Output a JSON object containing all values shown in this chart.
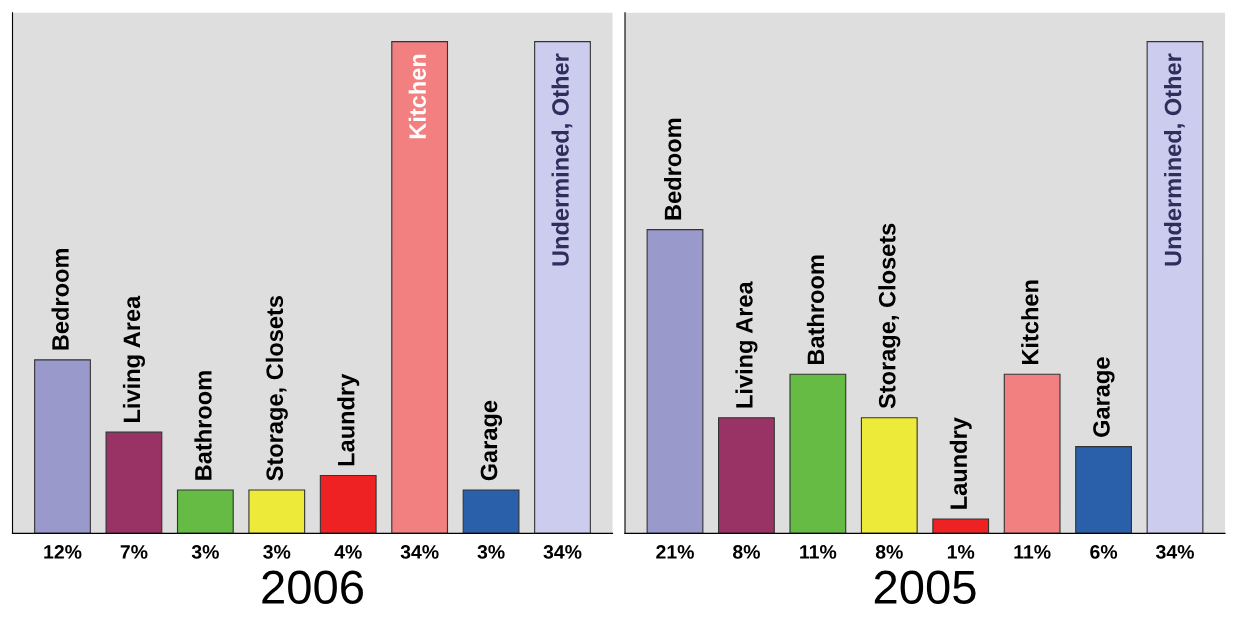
{
  "chart_data": [
    {
      "type": "bar",
      "title": "2006",
      "categories": [
        "Bedroom",
        "Living Area",
        "Bathroom",
        "Storage, Closets",
        "Laundry",
        "Kitchen",
        "Garage",
        "Undermined, Other"
      ],
      "values": [
        12,
        7,
        3,
        3,
        4,
        34,
        3,
        34
      ],
      "value_labels": [
        "12%",
        "7%",
        "3%",
        "3%",
        "4%",
        "34%",
        "3%",
        "34%"
      ],
      "colors": [
        "#9999cc",
        "#993366",
        "#66bb44",
        "#eeea3a",
        "#ee2222",
        "#f28080",
        "#2a5faa",
        "#ccccee"
      ],
      "ylim": [
        0,
        36
      ]
    },
    {
      "type": "bar",
      "title": "2005",
      "categories": [
        "Bedroom",
        "Living Area",
        "Bathroom",
        "Storage, Closets",
        "Laundry",
        "Kitchen",
        "Garage",
        "Undermined, Other"
      ],
      "values": [
        21,
        8,
        11,
        8,
        1,
        11,
        6,
        34
      ],
      "value_labels": [
        "21%",
        "8%",
        "11%",
        "8%",
        "1%",
        "11%",
        "6%",
        "34%"
      ],
      "colors": [
        "#9999cc",
        "#993366",
        "#66bb44",
        "#eeea3a",
        "#ee2222",
        "#f28080",
        "#2a5faa",
        "#ccccee"
      ],
      "ylim": [
        0,
        36
      ]
    }
  ]
}
